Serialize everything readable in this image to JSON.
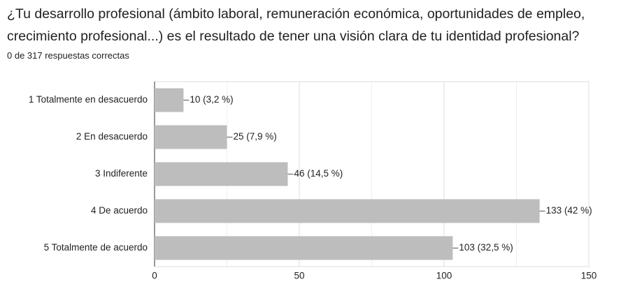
{
  "chart_data": {
    "type": "hbar",
    "title": "¿Tu desarrollo profesional (ámbito laboral, remuneración económica, oportunidades de empleo, crecimiento profesional...) es el resultado de tener una visión clara de tu identidad profesional?",
    "subtitle": "0 de 317 respuestas correctas",
    "categories": [
      "1 Totalmente en desacuerdo",
      "2 En desacuerdo",
      "3 Indiferente",
      "4 De acuerdo",
      "5 Totalmente de acuerdo"
    ],
    "values": [
      10,
      25,
      46,
      133,
      103
    ],
    "value_labels": [
      "10 (3,2 %)",
      "25 (7,9 %)",
      "46 (14,5 %)",
      "133 (42 %)",
      "103 (32,5 %)"
    ],
    "color": "#bdbdbd",
    "xlim": [
      0,
      150
    ],
    "xticks": [
      0,
      50,
      100,
      150
    ],
    "xminor": [
      25,
      75,
      125
    ],
    "grid": true
  }
}
